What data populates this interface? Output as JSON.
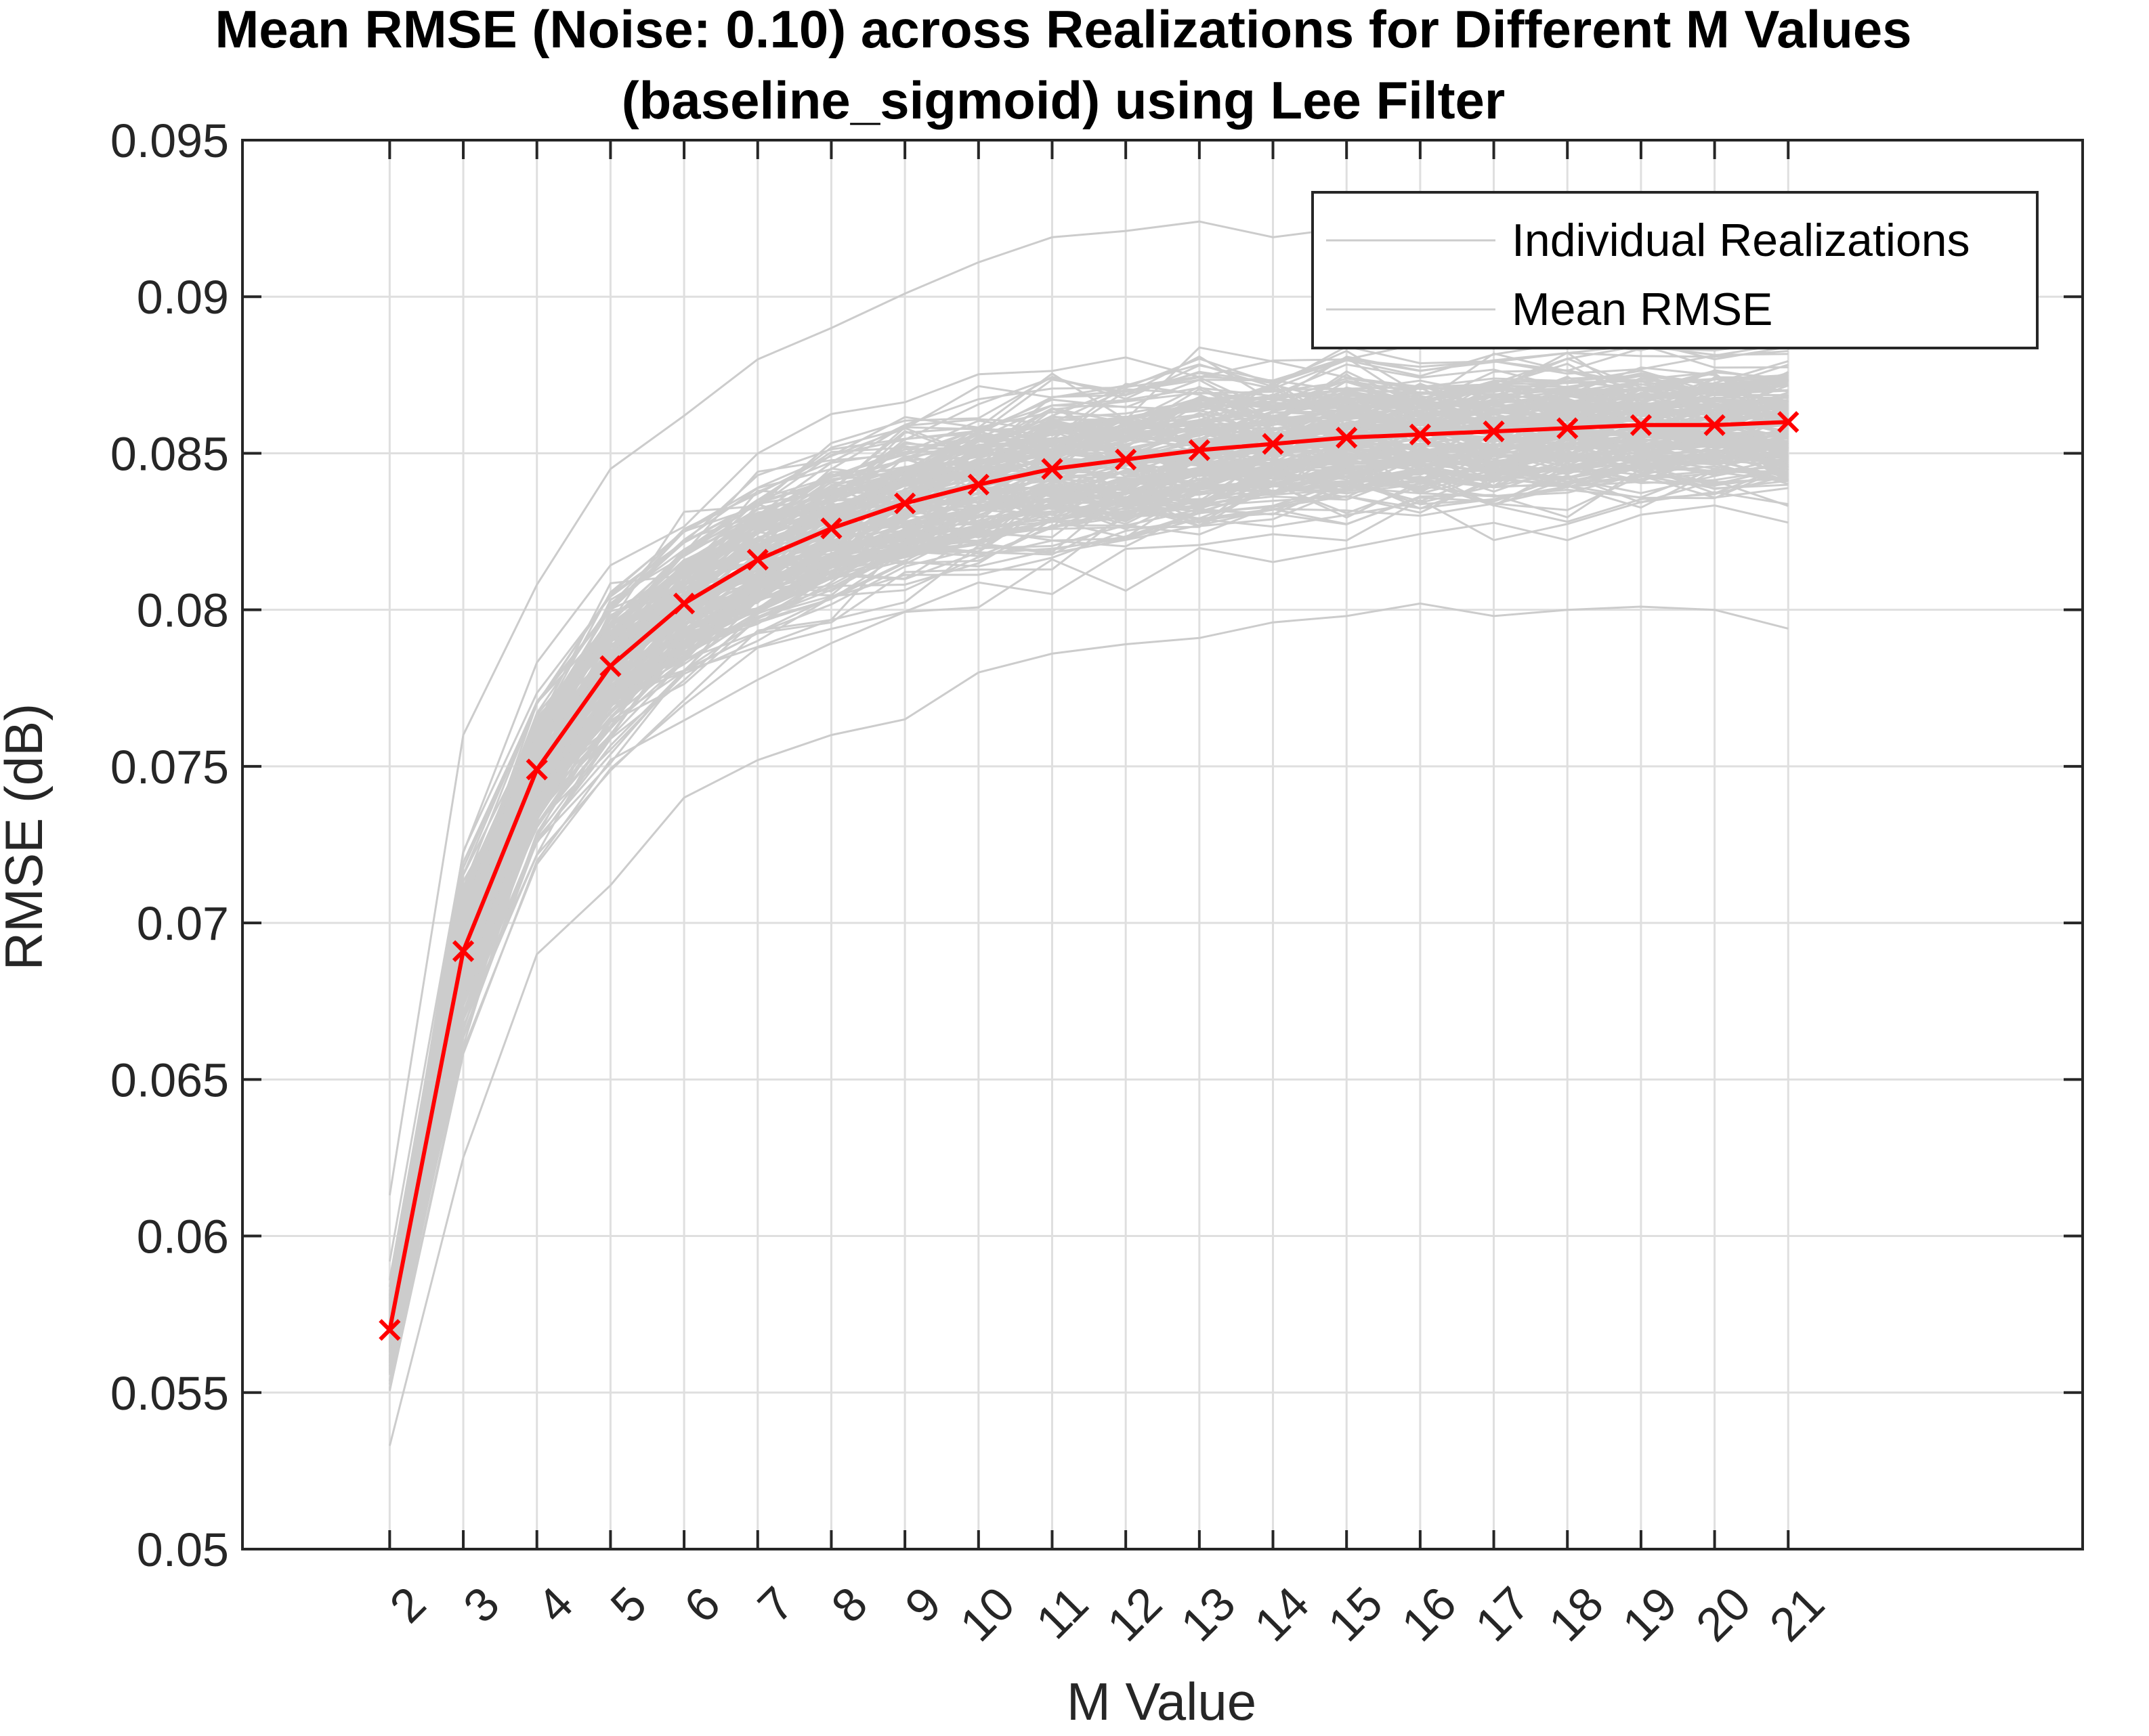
{
  "chart_data": {
    "type": "line",
    "title": "Mean RMSE (Noise: 0.10) across Realizations for Different M Values",
    "subtitle": "(baseline_sigmoid) using Lee Filter",
    "xlabel": "M Value",
    "ylabel": "RMSE (dB)",
    "x": [
      2,
      3,
      4,
      5,
      6,
      7,
      8,
      9,
      10,
      11,
      12,
      13,
      14,
      15,
      16,
      17,
      18,
      19,
      20,
      21
    ],
    "x_tick_labels": [
      "2",
      "3",
      "4",
      "5",
      "6",
      "7",
      "8",
      "9",
      "10",
      "11",
      "12",
      "13",
      "14",
      "15",
      "16",
      "17",
      "18",
      "19",
      "20",
      "21"
    ],
    "xlim": [
      0,
      25
    ],
    "ylim": [
      0.05,
      0.095
    ],
    "y_tick_labels": [
      "0.05",
      "0.055",
      "0.06",
      "0.065",
      "0.07",
      "0.075",
      "0.08",
      "0.085",
      "0.09",
      "0.095"
    ],
    "y_ticks": [
      0.05,
      0.055,
      0.06,
      0.065,
      0.07,
      0.075,
      0.08,
      0.085,
      0.09,
      0.095
    ],
    "grid": true,
    "legend_position": "top-right",
    "series": [
      {
        "name": "Mean RMSE",
        "color": "#ff0000",
        "marker": "x",
        "values": [
          0.057,
          0.0691,
          0.0749,
          0.0782,
          0.0802,
          0.0816,
          0.0826,
          0.0834,
          0.084,
          0.0845,
          0.0848,
          0.0851,
          0.0853,
          0.0855,
          0.0856,
          0.0857,
          0.0858,
          0.0859,
          0.0859,
          0.086
        ]
      }
    ],
    "realizations": {
      "name": "Individual Realizations",
      "color": "#cccccc",
      "count": 200,
      "min": [
        0.0533,
        0.0625,
        0.069,
        0.0712,
        0.074,
        0.0752,
        0.076,
        0.0765,
        0.078,
        0.0786,
        0.0789,
        0.0791,
        0.0796,
        0.0798,
        0.0802,
        0.0798,
        0.08,
        0.0801,
        0.08,
        0.0794
      ],
      "max": [
        0.0613,
        0.076,
        0.0808,
        0.0845,
        0.0862,
        0.088,
        0.089,
        0.0901,
        0.0911,
        0.0919,
        0.0921,
        0.0924,
        0.0919,
        0.0922,
        0.0922,
        0.092,
        0.0918,
        0.0916,
        0.0914,
        0.0912
      ]
    },
    "legend": [
      "Individual Realizations",
      "Mean RMSE"
    ]
  }
}
